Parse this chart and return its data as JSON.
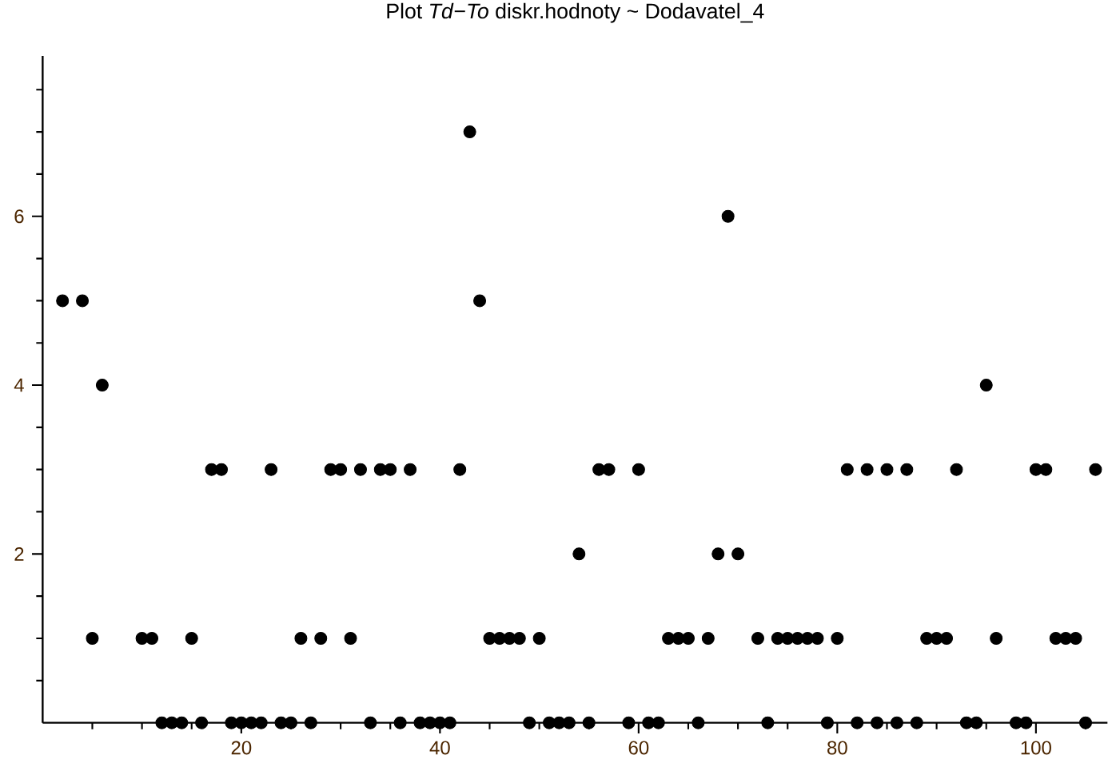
{
  "chart_data": {
    "type": "scatter",
    "title": "Plot *Td*−*To* diskr.hodnoty ~ Dodavatel_4",
    "x": [
      2,
      4,
      5,
      6,
      10,
      11,
      12,
      13,
      14,
      15,
      16,
      17,
      18,
      19,
      20,
      21,
      22,
      23,
      24,
      25,
      26,
      27,
      28,
      29,
      30,
      31,
      32,
      33,
      34,
      35,
      36,
      37,
      38,
      39,
      40,
      41,
      42,
      43,
      44,
      45,
      46,
      47,
      48,
      49,
      50,
      51,
      52,
      53,
      54,
      55,
      56,
      57,
      59,
      60,
      61,
      62,
      63,
      64,
      65,
      66,
      67,
      68,
      69,
      70,
      72,
      73,
      74,
      75,
      76,
      77,
      78,
      79,
      80,
      81,
      82,
      83,
      84,
      85,
      86,
      87,
      88,
      89,
      90,
      91,
      92,
      93,
      94,
      95,
      96,
      98,
      99,
      100,
      101,
      102,
      103,
      104,
      105,
      106
    ],
    "values": [
      5,
      5,
      1,
      4,
      1,
      1,
      0,
      0,
      0,
      1,
      0,
      3,
      3,
      0,
      0,
      0,
      0,
      3,
      0,
      0,
      1,
      0,
      1,
      3,
      3,
      1,
      3,
      0,
      3,
      3,
      0,
      3,
      0,
      0,
      0,
      0,
      3,
      7,
      5,
      1,
      1,
      1,
      1,
      0,
      1,
      0,
      0,
      0,
      2,
      0,
      3,
      3,
      0,
      3,
      0,
      0,
      1,
      1,
      1,
      0,
      1,
      2,
      6,
      2,
      1,
      0,
      1,
      1,
      1,
      1,
      1,
      0,
      1,
      3,
      0,
      3,
      0,
      3,
      0,
      3,
      0,
      1,
      1,
      1,
      3,
      0,
      0,
      4,
      1,
      0,
      0,
      3,
      3,
      1,
      1,
      1,
      0,
      3
    ],
    "color": "#000000",
    "xlim": [
      0,
      107.2
    ],
    "ylim": [
      0,
      7.9
    ],
    "xticks": [
      {
        "value": 5,
        "label": null
      },
      {
        "value": 10,
        "label": null
      },
      {
        "value": 15,
        "label": null
      },
      20,
      {
        "value": 25,
        "label": null
      },
      {
        "value": 30,
        "label": null
      },
      {
        "value": 35,
        "label": null
      },
      40,
      {
        "value": 45,
        "label": null
      },
      {
        "value": 50,
        "label": null
      },
      {
        "value": 55,
        "label": null
      },
      60,
      {
        "value": 65,
        "label": null
      },
      {
        "value": 70,
        "label": null
      },
      {
        "value": 75,
        "label": null
      },
      80,
      {
        "value": 85,
        "label": null
      },
      {
        "value": 90,
        "label": null
      },
      {
        "value": 95,
        "label": null
      },
      100,
      {
        "value": 105,
        "label": null
      }
    ],
    "yticks": [
      {
        "value": 0.5,
        "label": null
      },
      {
        "value": 1,
        "label": null
      },
      {
        "value": 1.5,
        "label": null
      },
      2,
      {
        "value": 2.5,
        "label": null
      },
      {
        "value": 3,
        "label": null
      },
      {
        "value": 3.5,
        "label": null
      },
      4,
      {
        "value": 4.5,
        "label": null
      },
      {
        "value": 5,
        "label": null
      },
      {
        "value": 5.5,
        "label": null
      },
      6,
      {
        "value": 6.5,
        "label": null
      },
      {
        "value": 7,
        "label": null
      },
      {
        "value": 7.5,
        "label": null
      }
    ]
  }
}
